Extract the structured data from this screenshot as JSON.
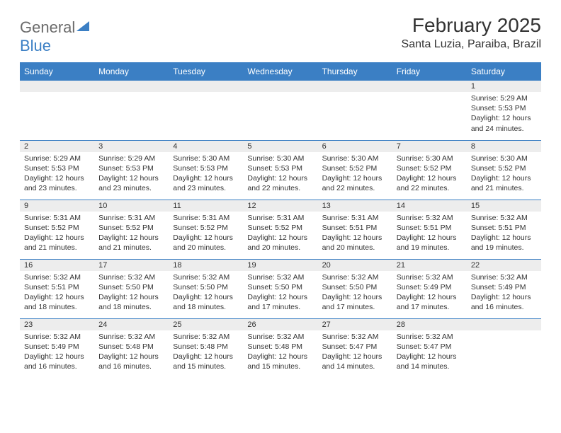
{
  "logo": {
    "text1": "General",
    "text2": "Blue"
  },
  "title": "February 2025",
  "location": "Santa Luzia, Paraiba, Brazil",
  "colors": {
    "header_bg": "#3b7fc4",
    "header_text": "#ffffff",
    "daynum_bg": "#ededed",
    "border": "#3b7fc4",
    "body_text": "#333333",
    "logo_gray": "#6b6b6b",
    "logo_blue": "#3b7fc4",
    "background": "#ffffff"
  },
  "typography": {
    "title_fontsize": 28,
    "location_fontsize": 16,
    "header_fontsize": 12,
    "daynum_fontsize": 11,
    "content_fontsize": 10.5
  },
  "weekdays": [
    "Sunday",
    "Monday",
    "Tuesday",
    "Wednesday",
    "Thursday",
    "Friday",
    "Saturday"
  ],
  "weeks": [
    [
      {
        "empty": true
      },
      {
        "empty": true
      },
      {
        "empty": true
      },
      {
        "empty": true
      },
      {
        "empty": true
      },
      {
        "empty": true
      },
      {
        "day": "1",
        "sunrise": "Sunrise: 5:29 AM",
        "sunset": "Sunset: 5:53 PM",
        "daylight": "Daylight: 12 hours and 24 minutes."
      }
    ],
    [
      {
        "day": "2",
        "sunrise": "Sunrise: 5:29 AM",
        "sunset": "Sunset: 5:53 PM",
        "daylight": "Daylight: 12 hours and 23 minutes."
      },
      {
        "day": "3",
        "sunrise": "Sunrise: 5:29 AM",
        "sunset": "Sunset: 5:53 PM",
        "daylight": "Daylight: 12 hours and 23 minutes."
      },
      {
        "day": "4",
        "sunrise": "Sunrise: 5:30 AM",
        "sunset": "Sunset: 5:53 PM",
        "daylight": "Daylight: 12 hours and 23 minutes."
      },
      {
        "day": "5",
        "sunrise": "Sunrise: 5:30 AM",
        "sunset": "Sunset: 5:53 PM",
        "daylight": "Daylight: 12 hours and 22 minutes."
      },
      {
        "day": "6",
        "sunrise": "Sunrise: 5:30 AM",
        "sunset": "Sunset: 5:52 PM",
        "daylight": "Daylight: 12 hours and 22 minutes."
      },
      {
        "day": "7",
        "sunrise": "Sunrise: 5:30 AM",
        "sunset": "Sunset: 5:52 PM",
        "daylight": "Daylight: 12 hours and 22 minutes."
      },
      {
        "day": "8",
        "sunrise": "Sunrise: 5:30 AM",
        "sunset": "Sunset: 5:52 PM",
        "daylight": "Daylight: 12 hours and 21 minutes."
      }
    ],
    [
      {
        "day": "9",
        "sunrise": "Sunrise: 5:31 AM",
        "sunset": "Sunset: 5:52 PM",
        "daylight": "Daylight: 12 hours and 21 minutes."
      },
      {
        "day": "10",
        "sunrise": "Sunrise: 5:31 AM",
        "sunset": "Sunset: 5:52 PM",
        "daylight": "Daylight: 12 hours and 21 minutes."
      },
      {
        "day": "11",
        "sunrise": "Sunrise: 5:31 AM",
        "sunset": "Sunset: 5:52 PM",
        "daylight": "Daylight: 12 hours and 20 minutes."
      },
      {
        "day": "12",
        "sunrise": "Sunrise: 5:31 AM",
        "sunset": "Sunset: 5:52 PM",
        "daylight": "Daylight: 12 hours and 20 minutes."
      },
      {
        "day": "13",
        "sunrise": "Sunrise: 5:31 AM",
        "sunset": "Sunset: 5:51 PM",
        "daylight": "Daylight: 12 hours and 20 minutes."
      },
      {
        "day": "14",
        "sunrise": "Sunrise: 5:32 AM",
        "sunset": "Sunset: 5:51 PM",
        "daylight": "Daylight: 12 hours and 19 minutes."
      },
      {
        "day": "15",
        "sunrise": "Sunrise: 5:32 AM",
        "sunset": "Sunset: 5:51 PM",
        "daylight": "Daylight: 12 hours and 19 minutes."
      }
    ],
    [
      {
        "day": "16",
        "sunrise": "Sunrise: 5:32 AM",
        "sunset": "Sunset: 5:51 PM",
        "daylight": "Daylight: 12 hours and 18 minutes."
      },
      {
        "day": "17",
        "sunrise": "Sunrise: 5:32 AM",
        "sunset": "Sunset: 5:50 PM",
        "daylight": "Daylight: 12 hours and 18 minutes."
      },
      {
        "day": "18",
        "sunrise": "Sunrise: 5:32 AM",
        "sunset": "Sunset: 5:50 PM",
        "daylight": "Daylight: 12 hours and 18 minutes."
      },
      {
        "day": "19",
        "sunrise": "Sunrise: 5:32 AM",
        "sunset": "Sunset: 5:50 PM",
        "daylight": "Daylight: 12 hours and 17 minutes."
      },
      {
        "day": "20",
        "sunrise": "Sunrise: 5:32 AM",
        "sunset": "Sunset: 5:50 PM",
        "daylight": "Daylight: 12 hours and 17 minutes."
      },
      {
        "day": "21",
        "sunrise": "Sunrise: 5:32 AM",
        "sunset": "Sunset: 5:49 PM",
        "daylight": "Daylight: 12 hours and 17 minutes."
      },
      {
        "day": "22",
        "sunrise": "Sunrise: 5:32 AM",
        "sunset": "Sunset: 5:49 PM",
        "daylight": "Daylight: 12 hours and 16 minutes."
      }
    ],
    [
      {
        "day": "23",
        "sunrise": "Sunrise: 5:32 AM",
        "sunset": "Sunset: 5:49 PM",
        "daylight": "Daylight: 12 hours and 16 minutes."
      },
      {
        "day": "24",
        "sunrise": "Sunrise: 5:32 AM",
        "sunset": "Sunset: 5:48 PM",
        "daylight": "Daylight: 12 hours and 16 minutes."
      },
      {
        "day": "25",
        "sunrise": "Sunrise: 5:32 AM",
        "sunset": "Sunset: 5:48 PM",
        "daylight": "Daylight: 12 hours and 15 minutes."
      },
      {
        "day": "26",
        "sunrise": "Sunrise: 5:32 AM",
        "sunset": "Sunset: 5:48 PM",
        "daylight": "Daylight: 12 hours and 15 minutes."
      },
      {
        "day": "27",
        "sunrise": "Sunrise: 5:32 AM",
        "sunset": "Sunset: 5:47 PM",
        "daylight": "Daylight: 12 hours and 14 minutes."
      },
      {
        "day": "28",
        "sunrise": "Sunrise: 5:32 AM",
        "sunset": "Sunset: 5:47 PM",
        "daylight": "Daylight: 12 hours and 14 minutes."
      },
      {
        "empty": true
      }
    ]
  ]
}
